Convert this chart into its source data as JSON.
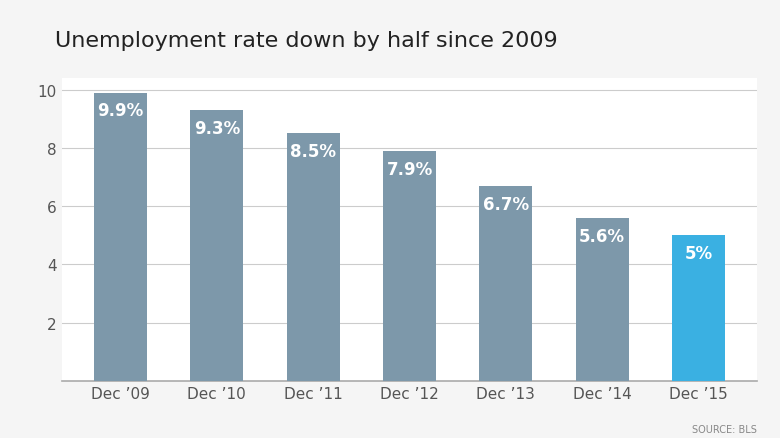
{
  "title": "Unemployment rate down by half since 2009",
  "categories": [
    "Dec ’09",
    "Dec ’10",
    "Dec ’11",
    "Dec ’12",
    "Dec ’13",
    "Dec ’14",
    "Dec ’15"
  ],
  "values": [
    9.9,
    9.3,
    8.5,
    7.9,
    6.7,
    5.6,
    5.0
  ],
  "labels": [
    "9.9%",
    "9.3%",
    "8.5%",
    "7.9%",
    "6.7%",
    "5.6%",
    "5%"
  ],
  "bar_colors": [
    "#7d98aa",
    "#7d98aa",
    "#7d98aa",
    "#7d98aa",
    "#7d98aa",
    "#7d98aa",
    "#3ab0e2"
  ],
  "ylim": [
    0,
    10.4
  ],
  "yticks": [
    2,
    4,
    6,
    8,
    10
  ],
  "background_color": "#f5f5f5",
  "plot_bg_color": "#ffffff",
  "title_fontsize": 16,
  "label_fontsize": 12,
  "tick_fontsize": 11,
  "source_text": "SOURCE: BLS",
  "label_color": "#ffffff",
  "grid_color": "#cccccc",
  "tick_color": "#555555",
  "bar_width": 0.55
}
